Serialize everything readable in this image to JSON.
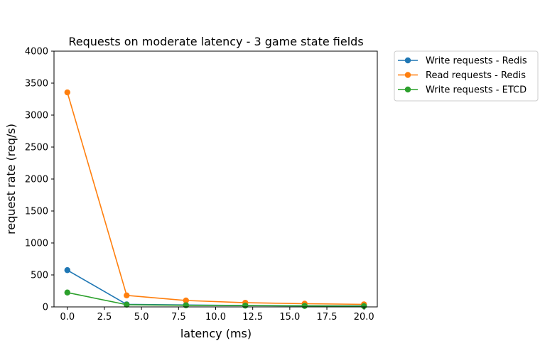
{
  "chart_data": {
    "type": "line",
    "title": "Requests on moderate latency - 3 game state fields",
    "xlabel": "latency (ms)",
    "ylabel": "request rate (req/s)",
    "xlim": [
      -0.9,
      20.9
    ],
    "ylim": [
      0,
      4000
    ],
    "xticks": [
      0.0,
      2.5,
      5.0,
      7.5,
      10.0,
      12.5,
      15.0,
      17.5,
      20.0
    ],
    "xtick_labels": [
      "0.0",
      "2.5",
      "5.0",
      "7.5",
      "10.0",
      "12.5",
      "15.0",
      "17.5",
      "20.0"
    ],
    "yticks": [
      0,
      500,
      1000,
      1500,
      2000,
      2500,
      3000,
      3500,
      4000
    ],
    "ytick_labels": [
      "0",
      "500",
      "1000",
      "1500",
      "2000",
      "2500",
      "3000",
      "3500",
      "4000"
    ],
    "grid": false,
    "legend_position": "outside-right-top",
    "x": [
      0,
      4,
      8,
      12,
      16,
      20
    ],
    "series": [
      {
        "name": "Write requests - Redis",
        "color": "#1f77b4",
        "values": [
          575,
          40,
          30,
          22,
          18,
          15
        ]
      },
      {
        "name": "Read requests - Redis",
        "color": "#ff7f0e",
        "values": [
          3355,
          180,
          100,
          65,
          50,
          40
        ]
      },
      {
        "name": "Write requests - ETCD",
        "color": "#2ca02c",
        "values": [
          225,
          35,
          25,
          20,
          15,
          12
        ]
      }
    ]
  }
}
